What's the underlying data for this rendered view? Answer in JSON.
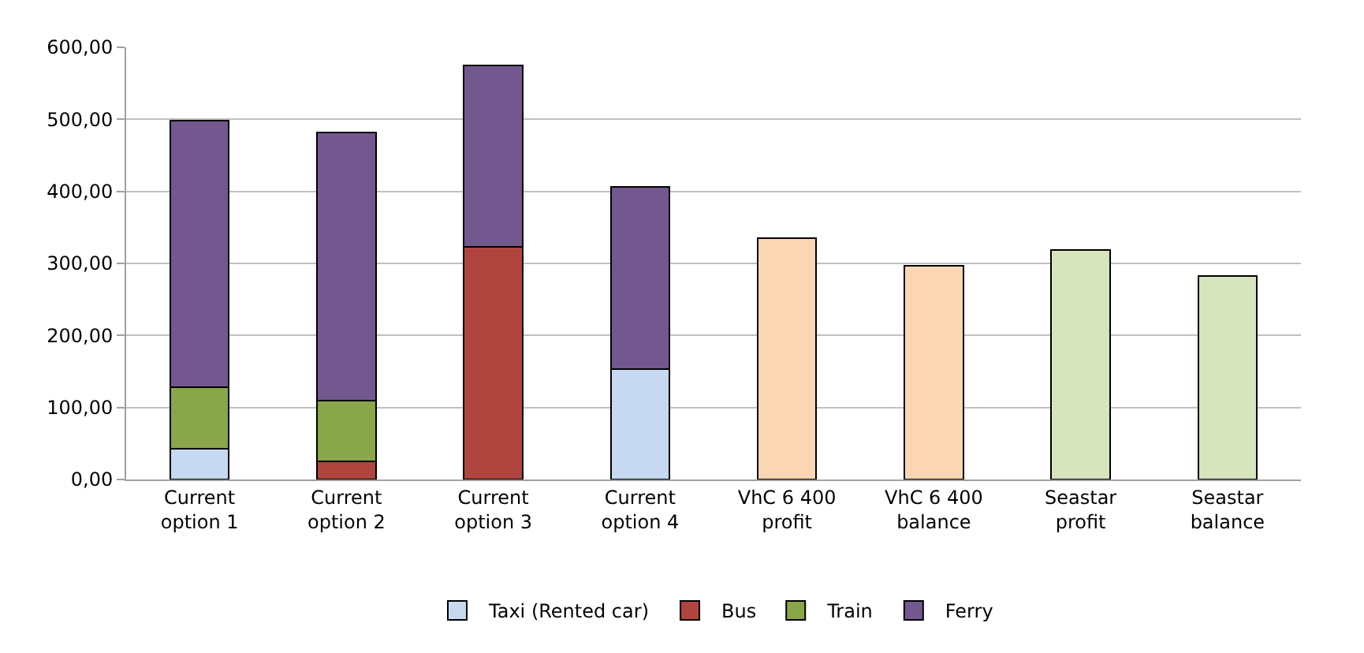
{
  "chart_data": {
    "type": "bar",
    "stacked": true,
    "categories": [
      "Current\noption 1",
      "Current\noption 2",
      "Current\noption 3",
      "Current\noption 4",
      "VhC 6 400\nprofit",
      "VhC 6 400\nbalance",
      "Seastar\nprofit",
      "Seastar\nbalance"
    ],
    "series": [
      {
        "name": "Taxi (Rented car)",
        "color": "#c6d9f1",
        "values": [
          43,
          null,
          null,
          153,
          null,
          null,
          null,
          null
        ]
      },
      {
        "name": "Bus",
        "color": "#b0443f",
        "values": [
          null,
          25,
          323,
          null,
          null,
          null,
          null,
          null
        ]
      },
      {
        "name": "Train",
        "color": "#8aa64a",
        "values": [
          85,
          85,
          null,
          null,
          null,
          null,
          null,
          null
        ]
      },
      {
        "name": "Ferry",
        "color": "#73588f",
        "values": [
          370,
          372,
          252,
          253,
          null,
          null,
          null,
          null
        ]
      },
      {
        "colors": [
          "#fcd5b5",
          "#fcd5b5",
          "#fcd5b5",
          "#fcd5b5",
          "#fcd5b5",
          "#fcd5b5",
          "#d7e4bd",
          "#d7e4bd"
        ],
        "values": [
          null,
          null,
          null,
          null,
          335,
          297,
          319,
          283
        ]
      }
    ],
    "ylim": [
      0,
      600
    ],
    "yticks": [
      {
        "value": 0,
        "label": "0,00"
      },
      {
        "value": 100,
        "label": "100,00"
      },
      {
        "value": 200,
        "label": "200,00"
      },
      {
        "value": 300,
        "label": "300,00"
      },
      {
        "value": 400,
        "label": "400,00"
      },
      {
        "value": 500,
        "label": "500,00"
      },
      {
        "value": 600,
        "label": "600,00"
      }
    ],
    "grid": "y",
    "legend": "bottom"
  }
}
